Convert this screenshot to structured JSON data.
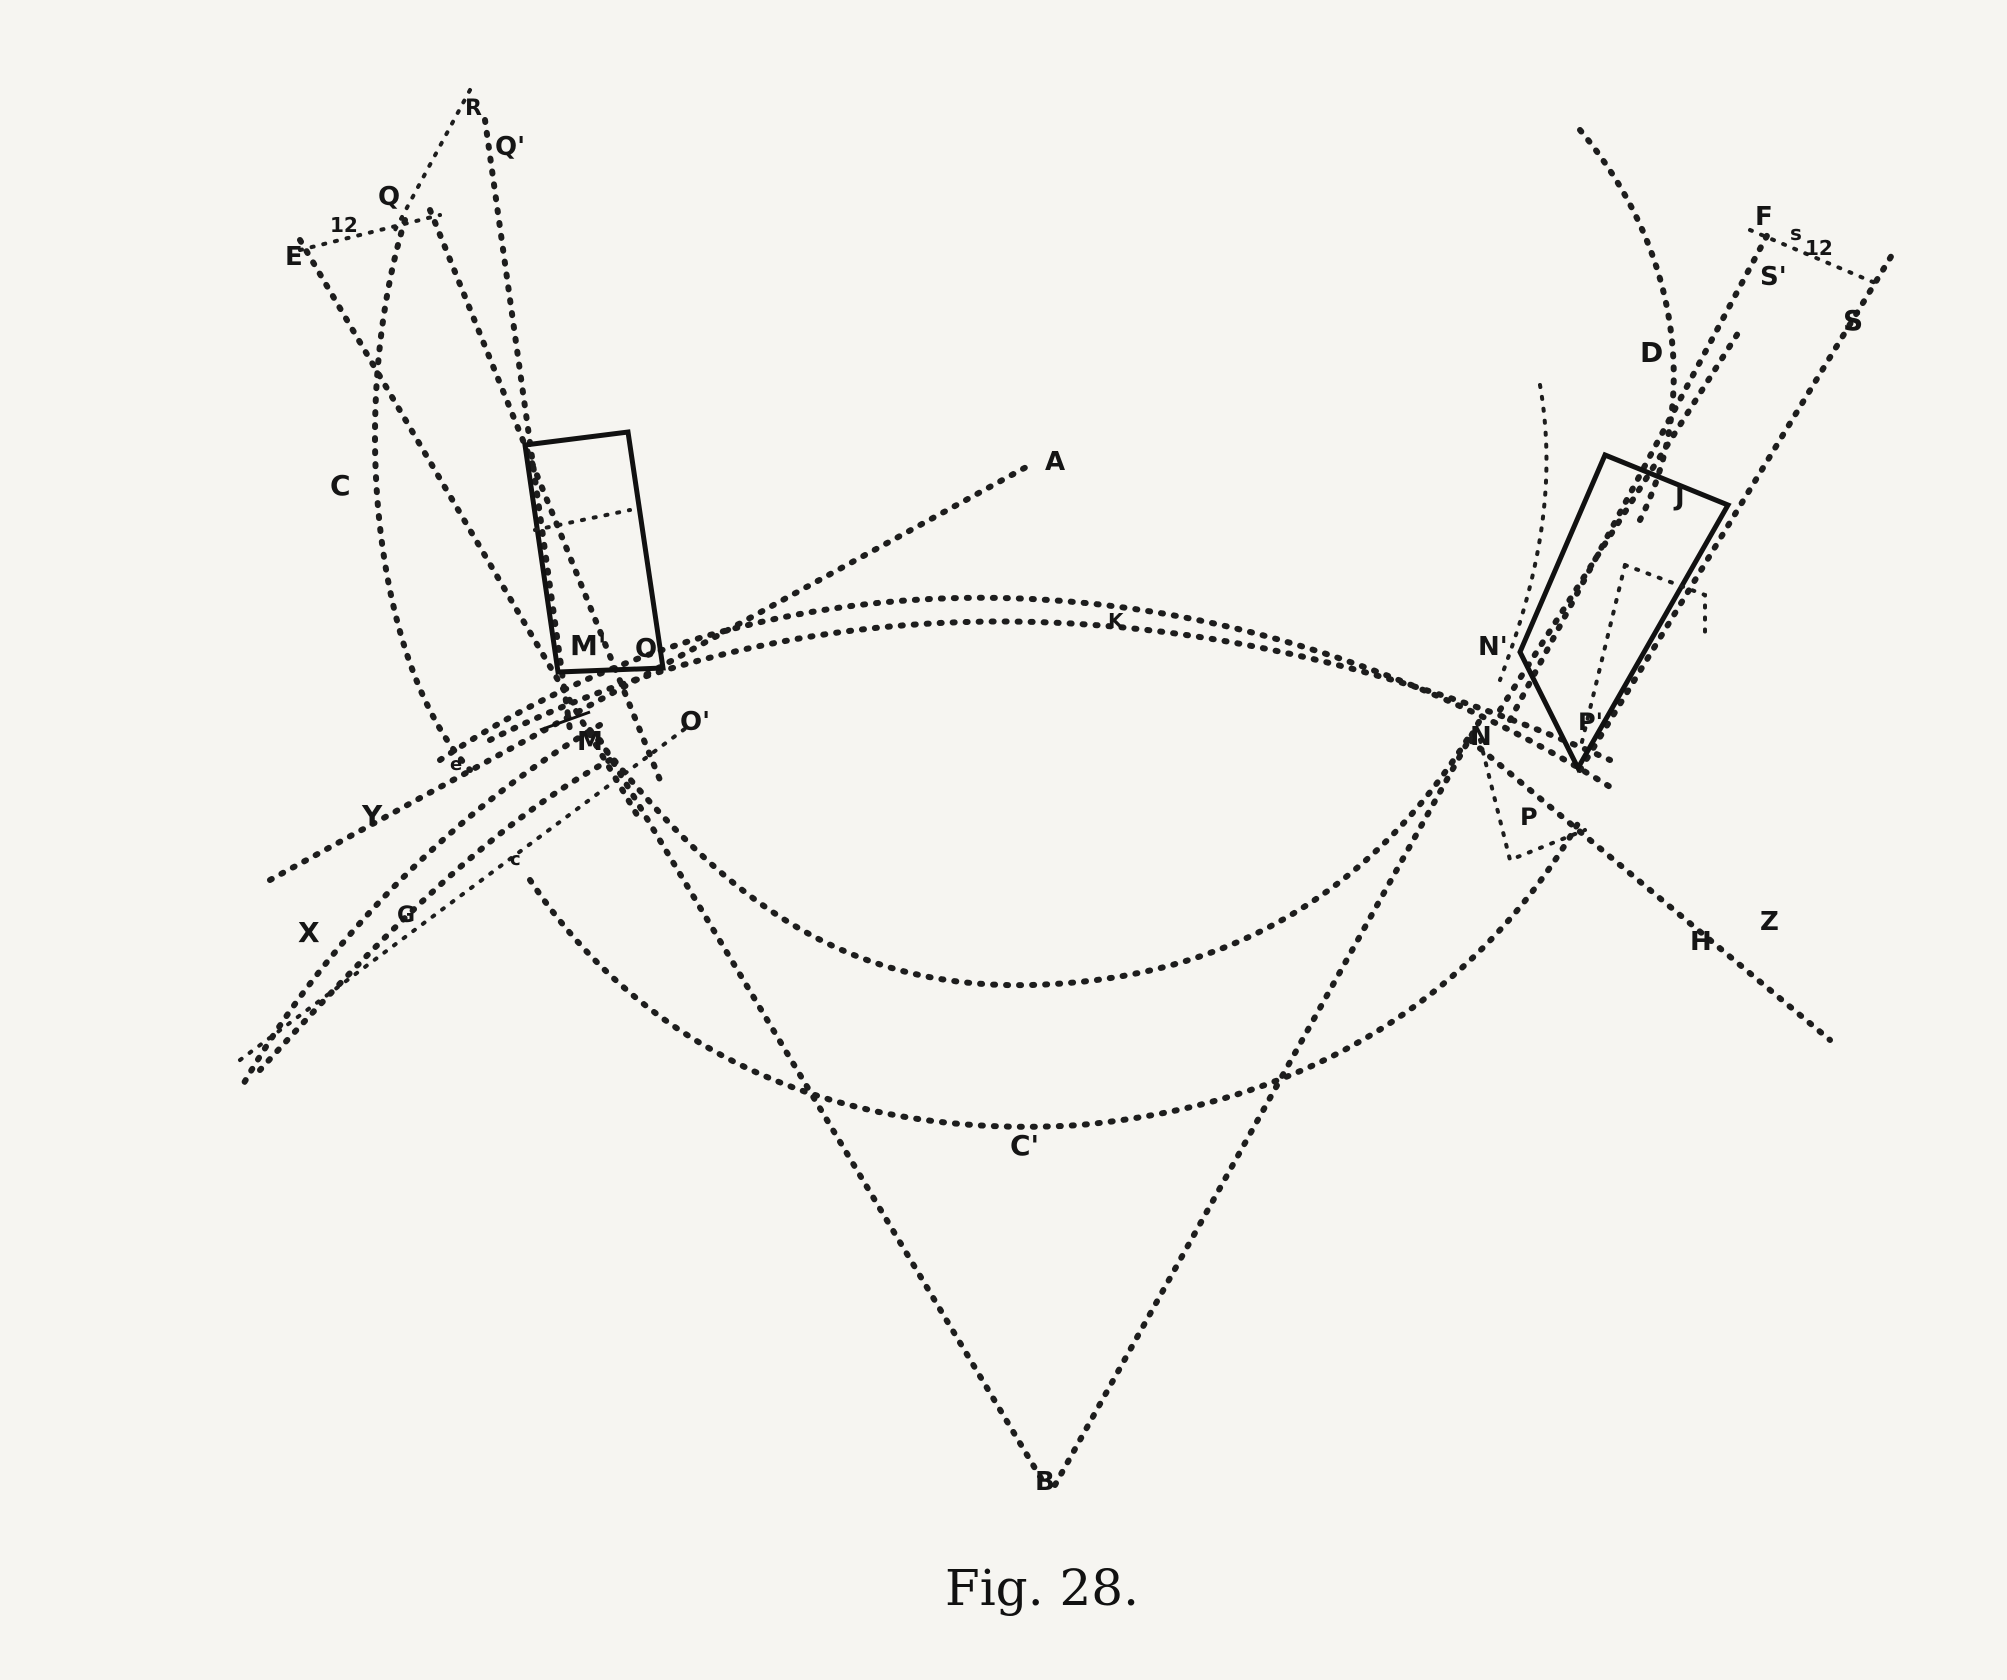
{
  "figure": {
    "caption": "Fig. 28.",
    "labels": {
      "A": "A",
      "B": "B",
      "C": "C",
      "C1": "C'",
      "D": "D",
      "E": "E",
      "F": "F",
      "H": "H",
      "J": "J",
      "M": "M",
      "M1": "M'",
      "N": "N",
      "N1": "N'",
      "O": "O",
      "O1": "O'",
      "P": "P",
      "P1": "P'",
      "Q": "Q",
      "Q1": "Q'",
      "S": "S",
      "S1": "S'",
      "X": "X",
      "Y": "Y",
      "Z": "Z",
      "R": "R",
      "G": "G",
      "K": "K",
      "e": "e",
      "c": "c",
      "s": "s",
      "n12a": "12",
      "n12b": "12"
    }
  }
}
